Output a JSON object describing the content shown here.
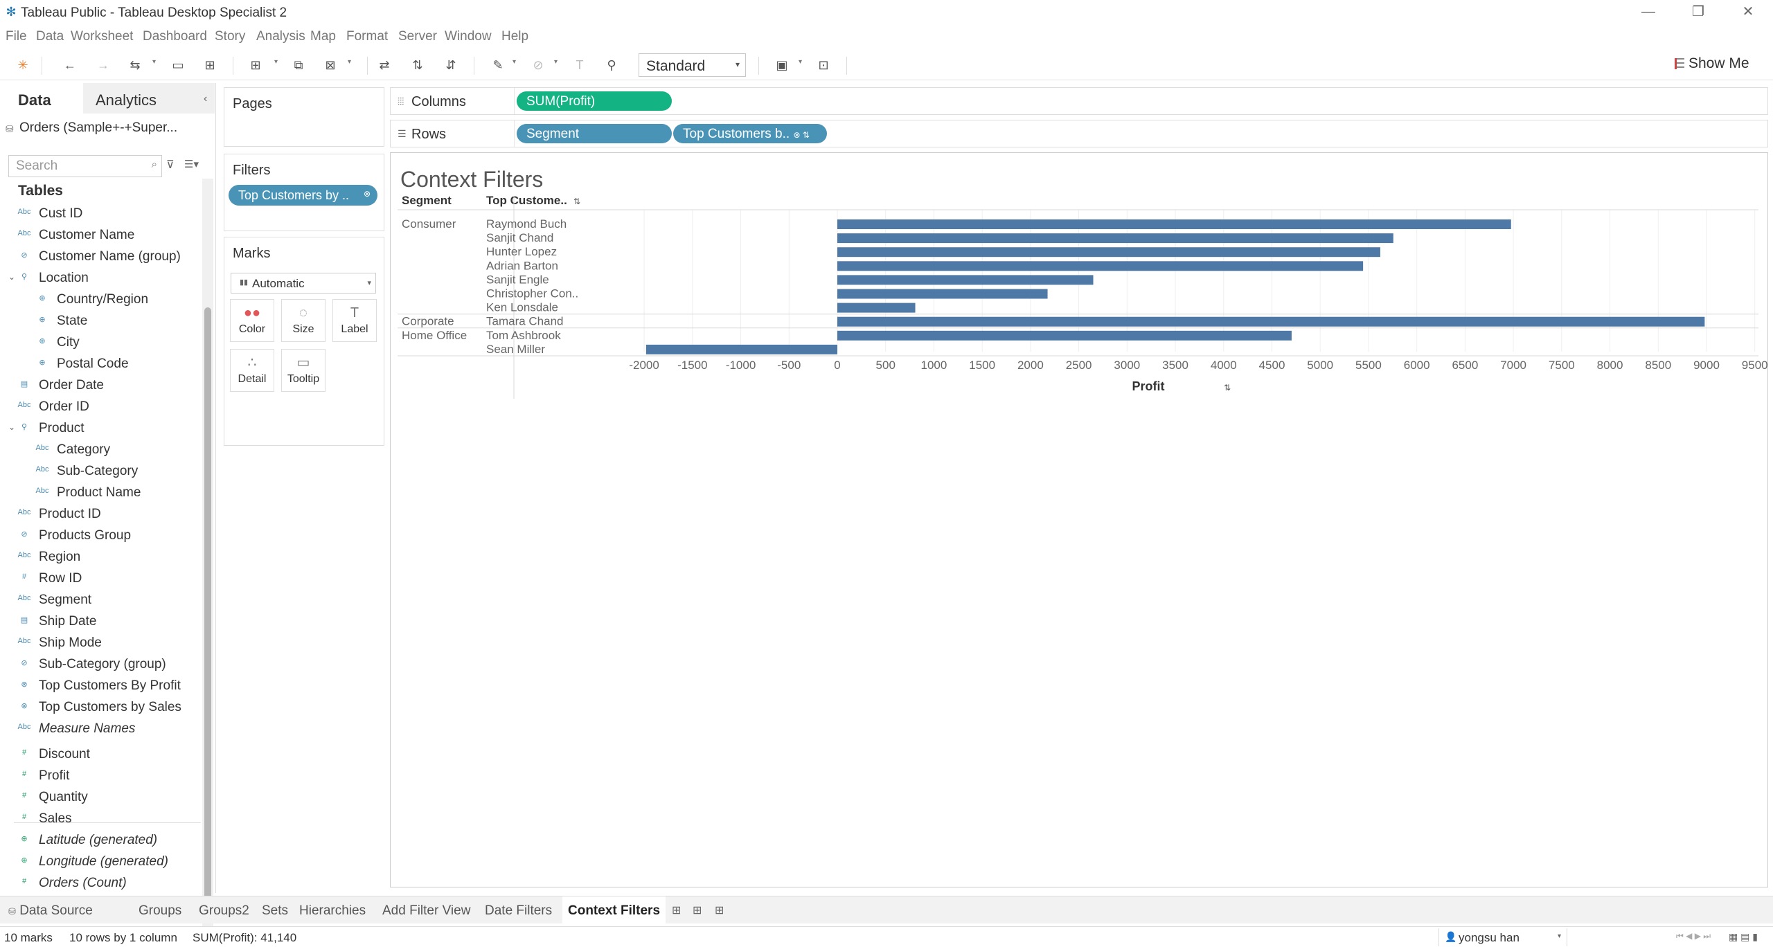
{
  "window": {
    "title": "Tableau Public - Tableau Desktop Specialist 2",
    "controls": [
      "—",
      "❐",
      "✕"
    ]
  },
  "menu": [
    "File",
    "Data",
    "Worksheet",
    "Dashboard",
    "Story",
    "Analysis",
    "Map",
    "Format",
    "Server",
    "Window",
    "Help"
  ],
  "toolbar": {
    "fit": "Standard",
    "show_me": "Show Me"
  },
  "data_pane": {
    "tab_data": "Data",
    "tab_analytics": "Analytics",
    "datasource": "Orders (Sample+-+Super...",
    "search_placeholder": "Search",
    "tables_title": "Tables",
    "fields": [
      {
        "name": "Cust ID",
        "type": "Abc",
        "kind": "dim"
      },
      {
        "name": "Customer Name",
        "type": "Abc",
        "kind": "dim"
      },
      {
        "name": "Customer Name (group)",
        "type": "⊘",
        "kind": "dim"
      },
      {
        "name": "Location",
        "type": "⚲",
        "kind": "dim",
        "expandable": true
      },
      {
        "name": "Country/Region",
        "type": "⊕",
        "kind": "dim",
        "indent": true
      },
      {
        "name": "State",
        "type": "⊕",
        "kind": "dim",
        "indent": true
      },
      {
        "name": "City",
        "type": "⊕",
        "kind": "dim",
        "indent": true
      },
      {
        "name": "Postal Code",
        "type": "⊕",
        "kind": "dim",
        "indent": true
      },
      {
        "name": "Order Date",
        "type": "▤",
        "kind": "dim"
      },
      {
        "name": "Order ID",
        "type": "Abc",
        "kind": "dim"
      },
      {
        "name": "Product",
        "type": "⚲",
        "kind": "dim",
        "expandable": true
      },
      {
        "name": "Category",
        "type": "Abc",
        "kind": "dim",
        "indent": true
      },
      {
        "name": "Sub-Category",
        "type": "Abc",
        "kind": "dim",
        "indent": true
      },
      {
        "name": "Product Name",
        "type": "Abc",
        "kind": "dim",
        "indent": true
      },
      {
        "name": "Product ID",
        "type": "Abc",
        "kind": "dim"
      },
      {
        "name": "Products Group",
        "type": "⊘",
        "kind": "dim"
      },
      {
        "name": "Region",
        "type": "Abc",
        "kind": "dim"
      },
      {
        "name": "Row ID",
        "type": "#",
        "kind": "dim"
      },
      {
        "name": "Segment",
        "type": "Abc",
        "kind": "dim"
      },
      {
        "name": "Ship Date",
        "type": "▤",
        "kind": "dim"
      },
      {
        "name": "Ship Mode",
        "type": "Abc",
        "kind": "dim"
      },
      {
        "name": "Sub-Category (group)",
        "type": "⊘",
        "kind": "dim"
      },
      {
        "name": "Top Customers By Profit",
        "type": "⊗",
        "kind": "dim"
      },
      {
        "name": "Top Customers by Sales",
        "type": "⊗",
        "kind": "dim"
      },
      {
        "name": "Measure Names",
        "type": "Abc",
        "kind": "dim",
        "italic": true
      },
      {
        "name": "Discount",
        "type": "#",
        "kind": "meas"
      },
      {
        "name": "Profit",
        "type": "#",
        "kind": "meas"
      },
      {
        "name": "Quantity",
        "type": "#",
        "kind": "meas"
      },
      {
        "name": "Sales",
        "type": "#",
        "kind": "meas"
      },
      {
        "name": "Latitude (generated)",
        "type": "⊕",
        "kind": "meas",
        "italic": true
      },
      {
        "name": "Longitude (generated)",
        "type": "⊕",
        "kind": "meas",
        "italic": true
      },
      {
        "name": "Orders (Count)",
        "type": "#",
        "kind": "meas",
        "italic": true
      }
    ]
  },
  "cards": {
    "pages": "Pages",
    "filters": "Filters",
    "filter_pill": "Top Customers by ..",
    "marks": "Marks",
    "mark_type": "Automatic",
    "mark_buttons": [
      {
        "label": "Color",
        "icon": "●●"
      },
      {
        "label": "Size",
        "icon": "◌"
      },
      {
        "label": "Label",
        "icon": "T"
      },
      {
        "label": "Detail",
        "icon": "∴"
      },
      {
        "label": "Tooltip",
        "icon": "▭"
      }
    ]
  },
  "shelves": {
    "columns_label": "Columns",
    "rows_label": "Rows",
    "columns_pills": [
      "SUM(Profit)"
    ],
    "rows_pills": [
      "Segment",
      "Top Customers b.."
    ]
  },
  "viz": {
    "title": "Context Filters",
    "header_segment": "Segment",
    "header_customer": "Top Custome..",
    "axis_title": "Profit"
  },
  "chart_data": {
    "type": "bar",
    "orientation": "horizontal",
    "title": "Context Filters",
    "xlabel": "Profit",
    "xlim": [
      -2000,
      9500
    ],
    "xticks": [
      -2000,
      -1500,
      -1000,
      -500,
      0,
      500,
      1000,
      1500,
      2000,
      2500,
      3000,
      3500,
      4000,
      4500,
      5000,
      5500,
      6000,
      6500,
      7000,
      7500,
      8000,
      8500,
      9000,
      9500
    ],
    "bar_color": "#4e79a7",
    "groups": [
      {
        "segment": "Consumer",
        "rows": [
          {
            "customer": "Raymond Buch",
            "value": 6976
          },
          {
            "customer": "Sanjit Chand",
            "value": 5757
          },
          {
            "customer": "Hunter Lopez",
            "value": 5622
          },
          {
            "customer": "Adrian Barton",
            "value": 5444
          },
          {
            "customer": "Sanjit Engle",
            "value": 2650
          },
          {
            "customer": "Christopher Con..",
            "value": 2177
          },
          {
            "customer": "Ken Lonsdale",
            "value": 807
          }
        ]
      },
      {
        "segment": "Corporate",
        "rows": [
          {
            "customer": "Tamara Chand",
            "value": 8981
          }
        ]
      },
      {
        "segment": "Home Office",
        "rows": [
          {
            "customer": "Tom Ashbrook",
            "value": 4704
          },
          {
            "customer": "Sean Miller",
            "value": -1980
          }
        ]
      }
    ]
  },
  "sheet_tabs": {
    "data_source": "Data Source",
    "tabs": [
      "Groups",
      "Groups2",
      "Sets",
      "Hierarchies",
      "Add Filter View",
      "Date Filters",
      "Context Filters"
    ],
    "active": "Context Filters"
  },
  "status": {
    "marks": "10 marks",
    "rows": "10 rows by 1 column",
    "sum": "SUM(Profit): 41,140",
    "user": "yongsu han"
  }
}
